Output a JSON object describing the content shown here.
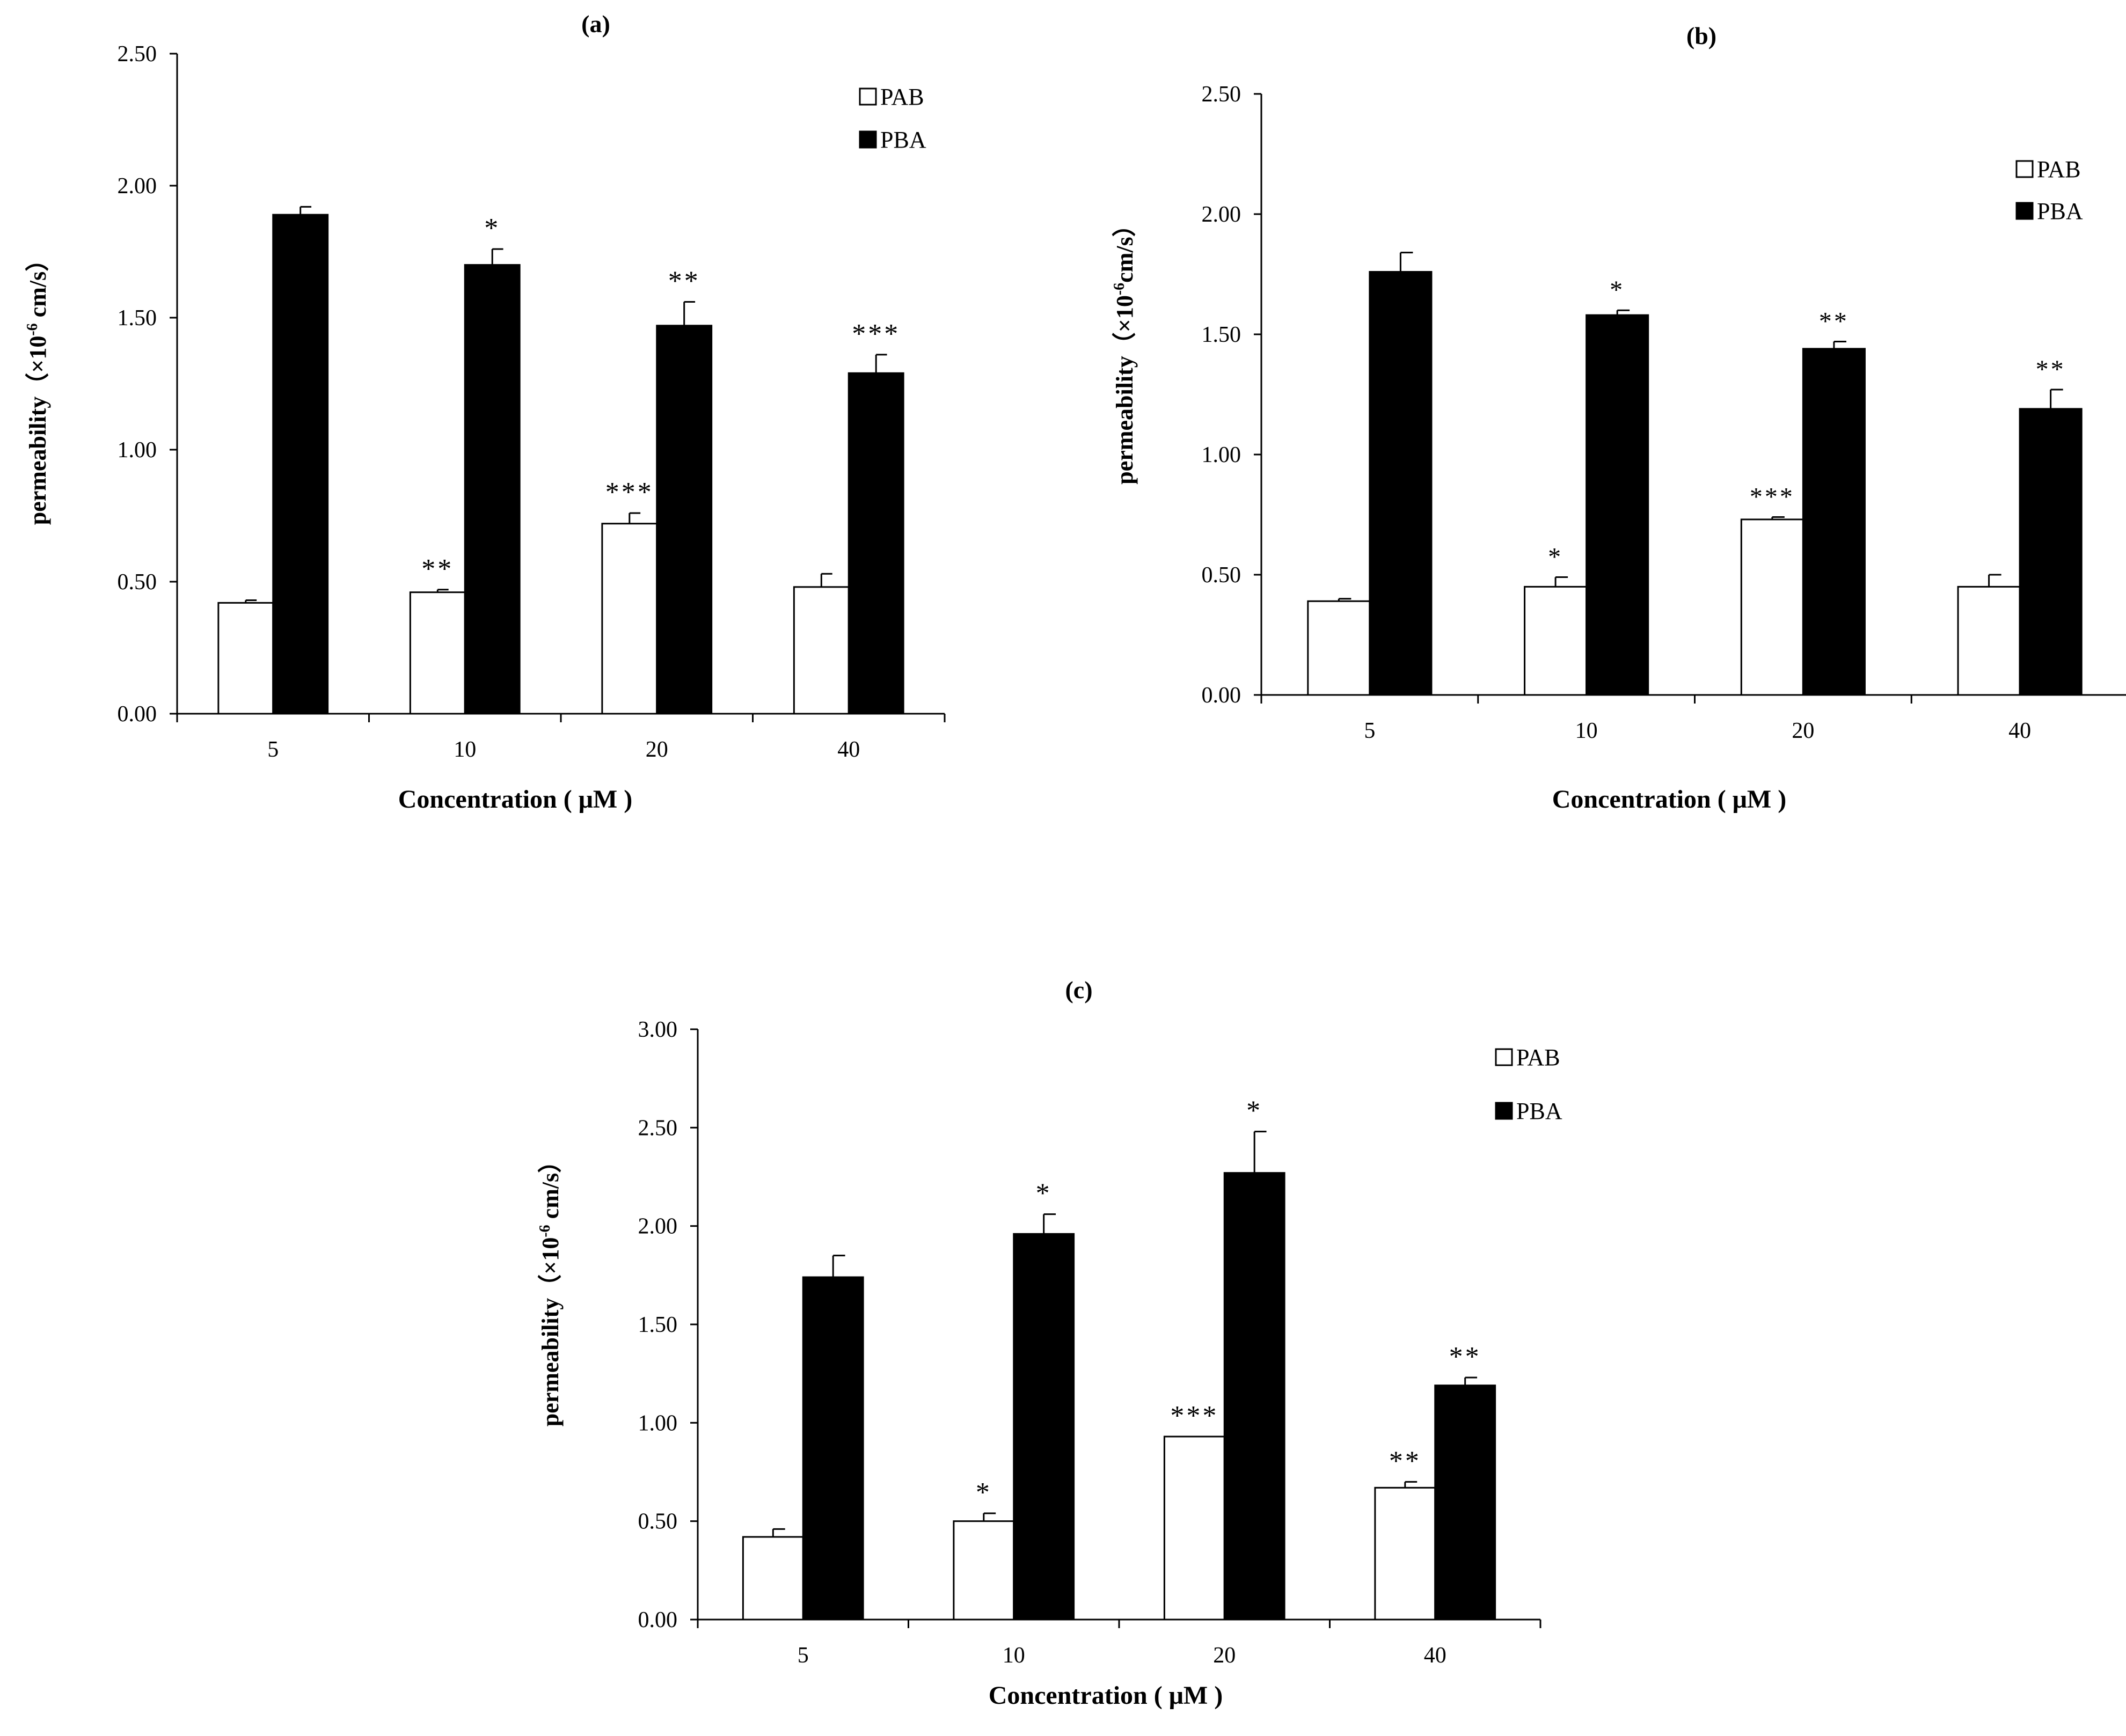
{
  "chart_data": [
    {
      "type": "bar",
      "title": "(a)",
      "xlabel": "Concentration ( μM )",
      "ylabel_pre": "permeability（×10",
      "ylabel_sup": "-6",
      "ylabel_post": " cm/s）",
      "ylim": [
        0,
        2.5
      ],
      "yticks": [
        "0.00",
        "0.50",
        "1.00",
        "1.50",
        "2.00",
        "2.50"
      ],
      "categories": [
        "5",
        "10",
        "20",
        "40"
      ],
      "legend": [
        "PAB",
        "PBA"
      ],
      "series": [
        {
          "name": "PAB",
          "color": "#ffffff",
          "values": [
            0.42,
            0.46,
            0.72,
            0.48
          ],
          "errors": [
            0.01,
            0.01,
            0.04,
            0.05
          ],
          "labels": [
            "",
            "**",
            "***",
            ""
          ]
        },
        {
          "name": "PBA",
          "color": "#000000",
          "values": [
            1.89,
            1.7,
            1.47,
            1.29
          ],
          "errors": [
            0.03,
            0.06,
            0.09,
            0.07
          ],
          "labels": [
            "",
            "*",
            "**",
            "***"
          ]
        }
      ]
    },
    {
      "type": "bar",
      "title": "(b)",
      "xlabel": "Concentration ( μM )",
      "ylabel_pre": "permeability（×10",
      "ylabel_sup": "-6",
      "ylabel_post": "cm/s）",
      "ylim": [
        0,
        2.5
      ],
      "yticks": [
        "0.00",
        "0.50",
        "1.00",
        "1.50",
        "2.00",
        "2.50"
      ],
      "categories": [
        "5",
        "10",
        "20",
        "40"
      ],
      "legend": [
        "PAB",
        "PBA"
      ],
      "series": [
        {
          "name": "PAB",
          "color": "#ffffff",
          "values": [
            0.39,
            0.45,
            0.73,
            0.45
          ],
          "errors": [
            0.01,
            0.04,
            0.01,
            0.05
          ],
          "labels": [
            "",
            "*",
            "***",
            ""
          ]
        },
        {
          "name": "PBA",
          "color": "#000000",
          "values": [
            1.76,
            1.58,
            1.44,
            1.19
          ],
          "errors": [
            0.08,
            0.02,
            0.03,
            0.08
          ],
          "labels": [
            "",
            "*",
            "**",
            "**"
          ]
        }
      ]
    },
    {
      "type": "bar",
      "title": "(c)",
      "xlabel": "Concentration ( μM )",
      "ylabel_pre": "permeability（×10",
      "ylabel_sup": "-6",
      "ylabel_post": " cm/s）",
      "ylim": [
        0,
        3.0
      ],
      "yticks": [
        "0.00",
        "0.50",
        "1.00",
        "1.50",
        "2.00",
        "2.50",
        "3.00"
      ],
      "categories": [
        "5",
        "10",
        "20",
        "40"
      ],
      "legend": [
        "PAB",
        "PBA"
      ],
      "series": [
        {
          "name": "PAB",
          "color": "#ffffff",
          "values": [
            0.42,
            0.5,
            0.93,
            0.67
          ],
          "errors": [
            0.04,
            0.04,
            0.0,
            0.03
          ],
          "labels": [
            "",
            "*",
            "***",
            "**"
          ]
        },
        {
          "name": "PBA",
          "color": "#000000",
          "values": [
            1.74,
            1.96,
            2.27,
            1.19
          ],
          "errors": [
            0.11,
            0.1,
            0.21,
            0.04
          ],
          "labels": [
            "",
            "*",
            "*",
            "**"
          ]
        }
      ]
    }
  ]
}
